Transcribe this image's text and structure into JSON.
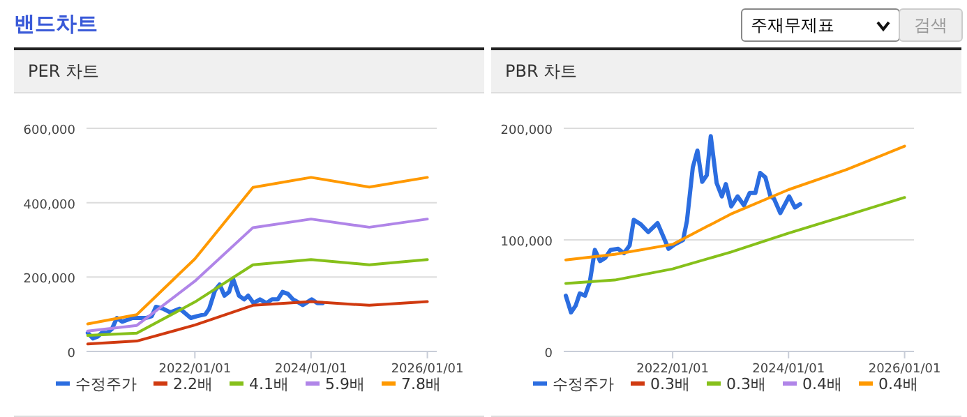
{
  "chart_data": [
    {
      "type": "line",
      "title": "PER 차트",
      "annotations": [
        "밴드차트",
        "주재무제표",
        "검색"
      ],
      "xlim": [
        "2020-02-20",
        "2026-03-01"
      ],
      "xticks": [
        {
          "value": "2022-01-01",
          "label": "2022/01/01"
        },
        {
          "value": "2024-01-01",
          "label": "2024/01/01"
        },
        {
          "value": "2026-01-01",
          "label": "2026/01/01"
        }
      ],
      "ylim": [
        0,
        600000
      ],
      "yticks": [
        {
          "value": 0,
          "label": "0"
        },
        {
          "value": 200000,
          "label": "200,000"
        },
        {
          "value": 400000,
          "label": "400,000"
        },
        {
          "value": 600000,
          "label": "600,000"
        }
      ],
      "grid": "y",
      "legend": "bottom",
      "line_style": "solid",
      "series": [
        {
          "name": "수정주가",
          "color": "#2b6de0",
          "x": [
            "2020-02-28",
            "2020-04-01",
            "2020-04-30",
            "2020-05-26",
            "2020-06-28",
            "2020-07-28",
            "2020-08-29",
            "2020-10-01",
            "2020-11-03",
            "2020-12-06",
            "2021-01-23",
            "2021-02-28",
            "2021-04-05",
            "2021-05-01",
            "2021-06-14",
            "2021-07-31",
            "2021-09-28",
            "2021-12-06",
            "2022-01-15",
            "2022-03-08",
            "2022-04-01",
            "2022-05-08",
            "2022-06-06",
            "2022-07-06",
            "2022-08-04",
            "2022-08-29",
            "2022-10-05",
            "2022-11-07",
            "2022-12-02",
            "2023-01-05",
            "2023-02-14",
            "2023-03-26",
            "2023-05-01",
            "2023-06-06",
            "2023-07-06",
            "2023-08-08",
            "2023-09-09",
            "2023-10-01",
            "2023-11-10",
            "2024-01-05",
            "2024-02-10",
            "2024-03-14"
          ],
          "values": [
            50000,
            35000,
            40000,
            50000,
            50000,
            60000,
            90000,
            80000,
            85000,
            90000,
            90000,
            90000,
            95000,
            120000,
            115000,
            105000,
            115000,
            90000,
            95000,
            100000,
            115000,
            165000,
            180000,
            150000,
            160000,
            195000,
            150000,
            140000,
            150000,
            130000,
            140000,
            130000,
            140000,
            140000,
            160000,
            155000,
            140000,
            135000,
            125000,
            140000,
            130000,
            130000
          ]
        },
        {
          "name": "2.2배",
          "color": "#d03a10",
          "x": [
            "2020-02-28",
            "2021-01-01",
            "2022-01-01",
            "2023-01-01",
            "2024-01-01",
            "2025-01-01",
            "2026-01-01"
          ],
          "values": [
            20000,
            28000,
            71000,
            124000,
            134000,
            124000,
            134000
          ]
        },
        {
          "name": "4.1배",
          "color": "#86c01a",
          "x": [
            "2020-02-28",
            "2021-01-01",
            "2022-01-01",
            "2023-01-01",
            "2024-01-01",
            "2025-01-01",
            "2026-01-01"
          ],
          "values": [
            43000,
            49000,
            133000,
            233000,
            247000,
            233000,
            247000
          ]
        },
        {
          "name": "5.9배",
          "color": "#b085e8",
          "x": [
            "2020-02-28",
            "2021-01-01",
            "2022-01-01",
            "2023-01-01",
            "2024-01-01",
            "2025-01-01",
            "2026-01-01"
          ],
          "values": [
            55000,
            70000,
            189000,
            333000,
            356000,
            334000,
            356000
          ]
        },
        {
          "name": "7.8배",
          "color": "#ff9900",
          "x": [
            "2020-02-28",
            "2021-01-01",
            "2022-01-01",
            "2023-01-01",
            "2024-01-01",
            "2025-01-01",
            "2026-01-01"
          ],
          "values": [
            74000,
            99000,
            249000,
            441000,
            468000,
            442000,
            468000
          ]
        }
      ]
    },
    {
      "type": "line",
      "title": "PBR 차트",
      "xlim": [
        "2020-02-15",
        "2026-03-01"
      ],
      "xticks": [
        {
          "value": "2022-01-01",
          "label": "2022/01/01"
        },
        {
          "value": "2024-01-01",
          "label": "2024/01/01"
        },
        {
          "value": "2026-01-01",
          "label": "2026/01/01"
        }
      ],
      "ylim": [
        0,
        200000
      ],
      "yticks": [
        {
          "value": 0,
          "label": "0"
        },
        {
          "value": 100000,
          "label": "100,000"
        },
        {
          "value": 200000,
          "label": "200,000"
        }
      ],
      "grid": "y",
      "legend": "bottom",
      "line_style": "solid",
      "series": [
        {
          "name": "수정주가",
          "color": "#2b6de0",
          "x": [
            "2020-02-28",
            "2020-04-01",
            "2020-04-30",
            "2020-05-26",
            "2020-06-28",
            "2020-07-28",
            "2020-08-29",
            "2020-10-01",
            "2020-11-03",
            "2020-12-06",
            "2021-01-23",
            "2021-02-28",
            "2021-04-05",
            "2021-05-01",
            "2021-06-14",
            "2021-07-31",
            "2021-09-28",
            "2021-12-06",
            "2022-01-15",
            "2022-03-08",
            "2022-04-01",
            "2022-05-08",
            "2022-06-06",
            "2022-07-06",
            "2022-08-04",
            "2022-08-29",
            "2022-10-05",
            "2022-11-07",
            "2022-12-02",
            "2023-01-05",
            "2023-02-14",
            "2023-03-26",
            "2023-05-01",
            "2023-06-06",
            "2023-07-06",
            "2023-08-08",
            "2023-09-09",
            "2023-10-01",
            "2023-11-10",
            "2024-01-05",
            "2024-02-10",
            "2024-03-14"
          ],
          "values": [
            50000,
            35000,
            41000,
            52000,
            50000,
            62000,
            91000,
            81000,
            84000,
            91000,
            92000,
            88000,
            95000,
            118000,
            114000,
            107000,
            115000,
            92000,
            96000,
            100000,
            117000,
            165000,
            180000,
            152000,
            158000,
            193000,
            151000,
            139000,
            150000,
            130000,
            139000,
            131000,
            142000,
            142000,
            160000,
            156000,
            139000,
            137000,
            124000,
            139000,
            129000,
            132000
          ]
        },
        {
          "name": "0.3배",
          "color": "#d03a10"
        },
        {
          "name": "0.3배",
          "color": "#86c01a",
          "x": [
            "2020-02-28",
            "2021-01-01",
            "2022-01-01",
            "2023-01-01",
            "2024-01-01",
            "2025-01-01",
            "2026-01-01"
          ],
          "values": [
            61000,
            64000,
            74000,
            89000,
            106000,
            122000,
            138000
          ]
        },
        {
          "name": "0.4배",
          "color": "#b085e8"
        },
        {
          "name": "0.4배",
          "color": "#ff9900",
          "x": [
            "2020-02-28",
            "2021-01-01",
            "2022-01-01",
            "2023-01-01",
            "2024-01-01",
            "2025-01-01",
            "2026-01-01"
          ],
          "values": [
            82000,
            87000,
            96000,
            123000,
            145000,
            163000,
            184000
          ]
        }
      ]
    }
  ]
}
